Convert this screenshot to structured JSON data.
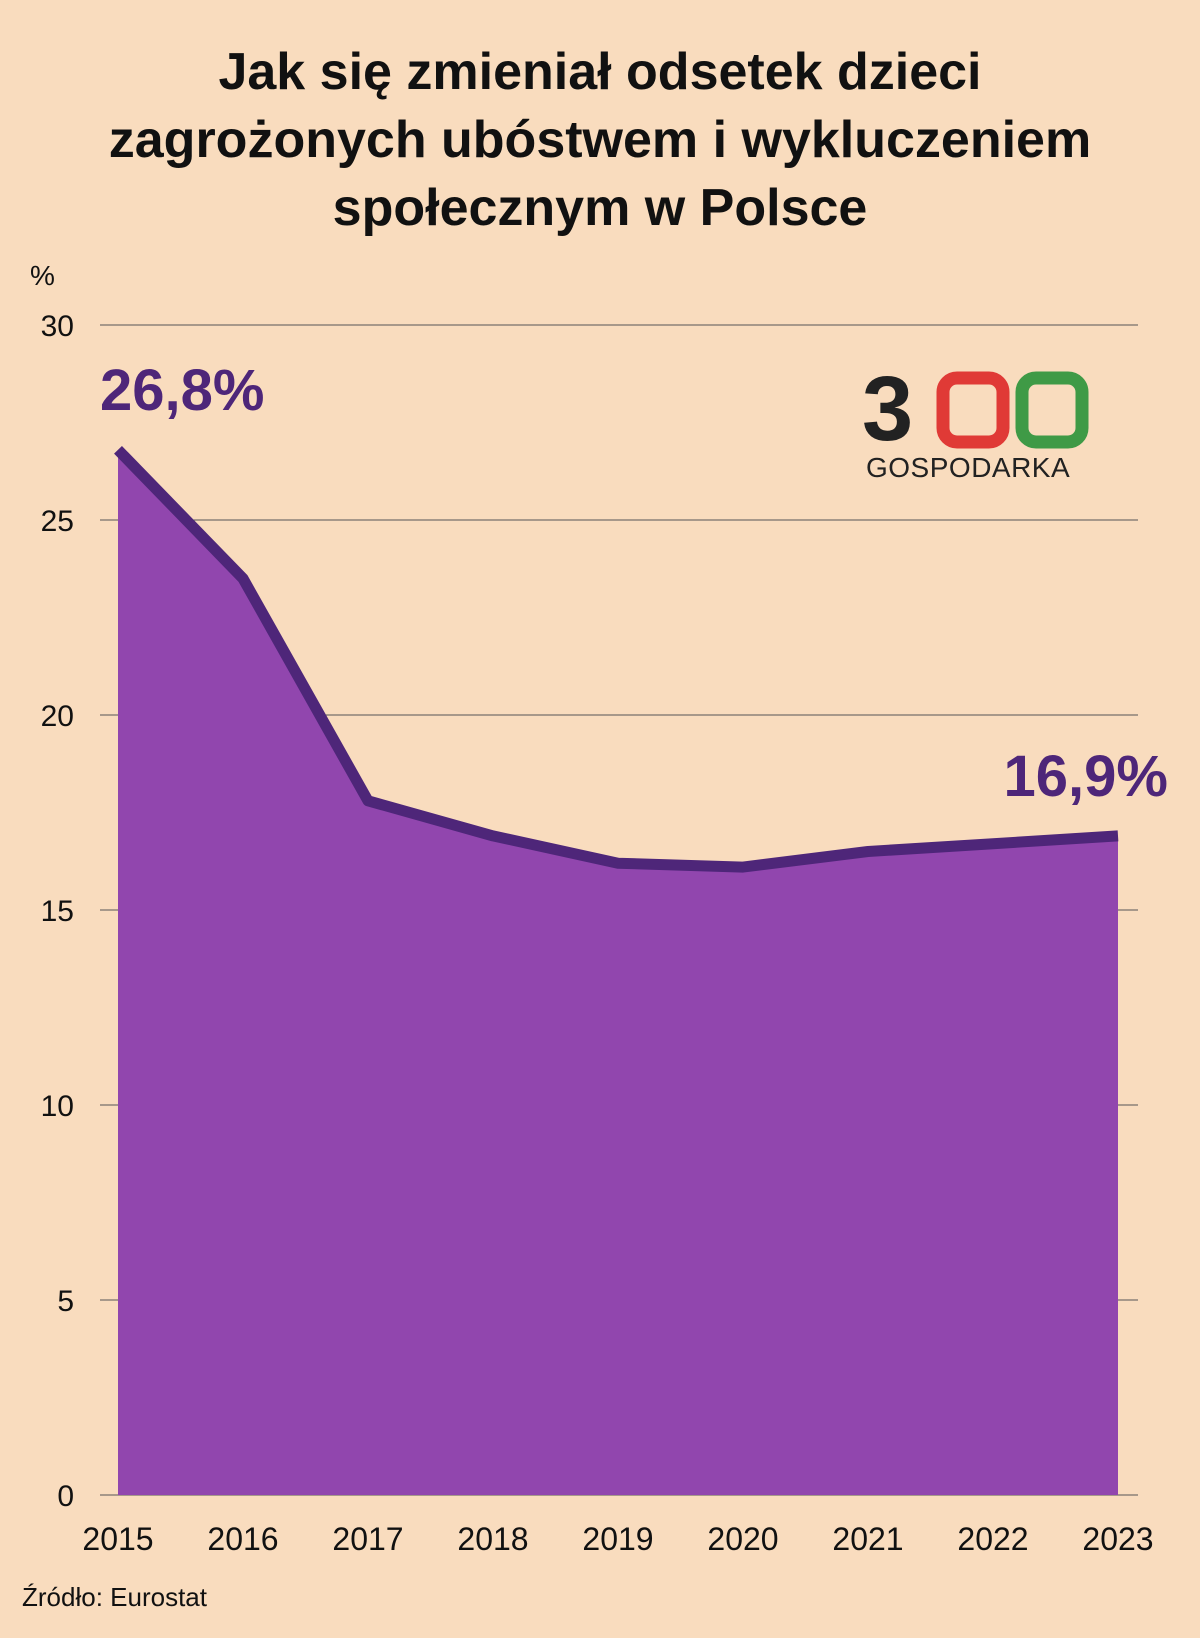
{
  "chart_data": {
    "type": "area",
    "title_lines": [
      "Jak się zmieniał odsetek dzieci",
      "zagrożonych ubóstwem i wykluczeniem",
      "społecznym w Polsce"
    ],
    "y_unit_label": "%",
    "ylim": [
      0,
      30
    ],
    "y_ticks": [
      0,
      5,
      10,
      15,
      20,
      25,
      30
    ],
    "grid": true,
    "categories": [
      "2015",
      "2016",
      "2017",
      "2018",
      "2019",
      "2020",
      "2021",
      "2022",
      "2023"
    ],
    "values": [
      26.8,
      23.5,
      17.8,
      16.9,
      16.2,
      16.1,
      16.5,
      16.7,
      16.9
    ],
    "annotations": [
      {
        "category": "2015",
        "text": "26,8%"
      },
      {
        "category": "2023",
        "text": "16,9%"
      }
    ],
    "source": "Źródło: Eurostat"
  },
  "logo": {
    "number": "300",
    "subtitle": "GOSPODARKA"
  },
  "colors": {
    "background": "#f9dcbe",
    "area_fill": "#9146ae",
    "line": "#4e2679",
    "annotation": "#4e2679",
    "grid": "#555555",
    "text": "#111111",
    "logo_dark": "#222222",
    "logo_red": "#e03a36",
    "logo_green": "#3f9a46"
  }
}
